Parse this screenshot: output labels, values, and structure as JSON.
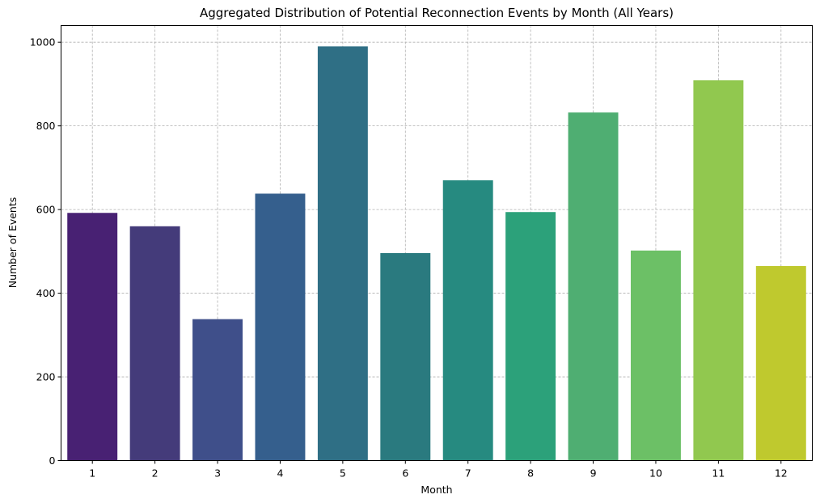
{
  "chart_data": {
    "type": "bar",
    "title": "Aggregated Distribution of Potential Reconnection Events by Month (All Years)",
    "xlabel": "Month",
    "ylabel": "Number of Events",
    "categories": [
      "1",
      "2",
      "3",
      "4",
      "5",
      "6",
      "7",
      "8",
      "9",
      "10",
      "11",
      "12"
    ],
    "values": [
      592,
      560,
      338,
      638,
      990,
      496,
      670,
      594,
      832,
      502,
      909,
      465
    ],
    "ylim": [
      0,
      1040
    ],
    "yticks": [
      "0",
      "200",
      "400",
      "600",
      "800",
      "1000"
    ],
    "grid": true,
    "colors": [
      "#482173",
      "#443b7a",
      "#3f4f8a",
      "#355f8d",
      "#2f6f85",
      "#2a7a7f",
      "#268a80",
      "#2ca17a",
      "#4fae72",
      "#6cc066",
      "#91c84f",
      "#bfc92e"
    ]
  }
}
